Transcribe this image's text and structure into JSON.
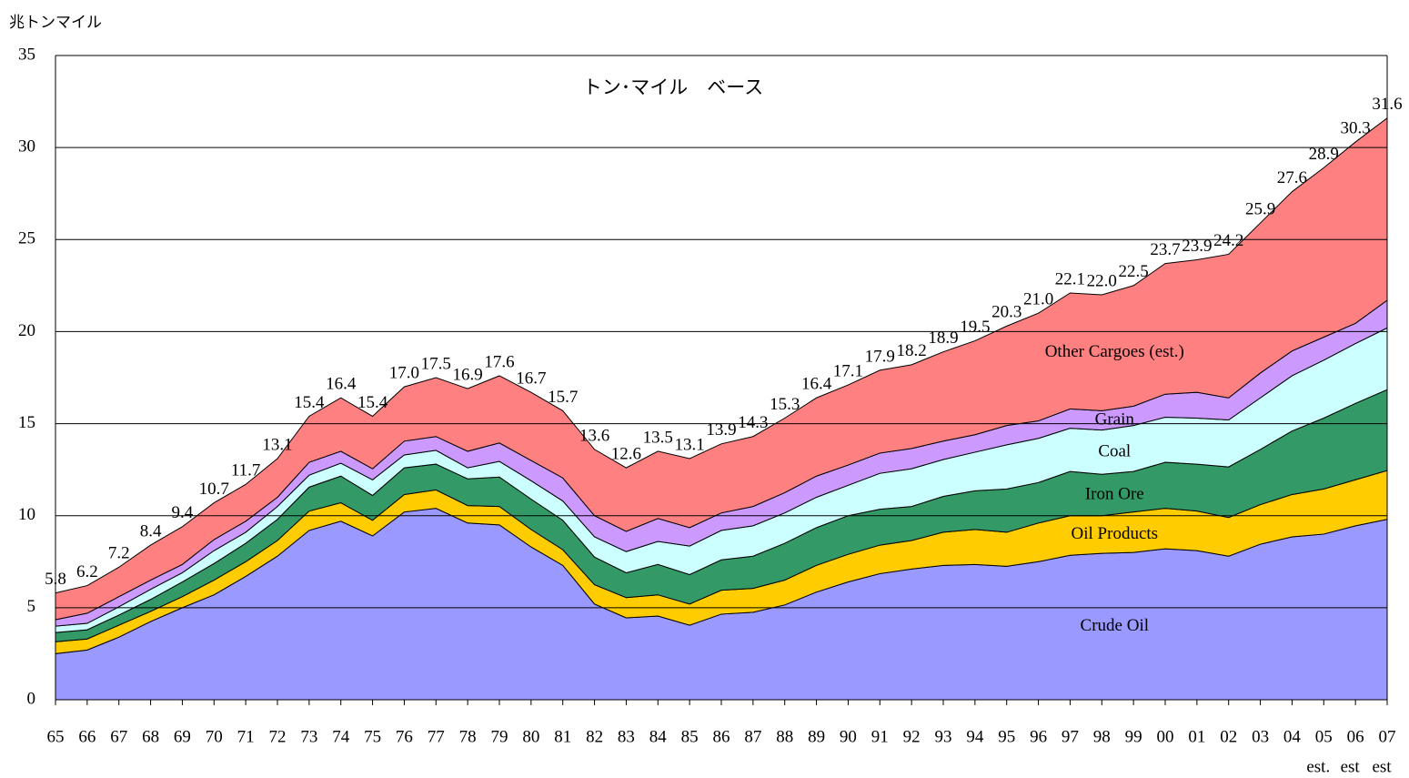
{
  "chart_data": {
    "type": "stacked_area",
    "title": "トン･マイル　ベース",
    "y_axis_label": "兆トンマイル",
    "categories": [
      "65",
      "66",
      "67",
      "68",
      "69",
      "70",
      "71",
      "72",
      "73",
      "74",
      "75",
      "76",
      "77",
      "78",
      "79",
      "80",
      "81",
      "82",
      "83",
      "84",
      "85",
      "86",
      "87",
      "88",
      "89",
      "90",
      "91",
      "92",
      "93",
      "94",
      "95",
      "96",
      "97",
      "98",
      "99",
      "00",
      "01",
      "02",
      "03",
      "04",
      "05",
      "06",
      "07"
    ],
    "x_sublabels": [
      null,
      null,
      null,
      null,
      null,
      null,
      null,
      null,
      null,
      null,
      null,
      null,
      null,
      null,
      null,
      null,
      null,
      null,
      null,
      null,
      null,
      null,
      null,
      null,
      null,
      null,
      null,
      null,
      null,
      null,
      null,
      null,
      null,
      null,
      null,
      null,
      null,
      null,
      null,
      null,
      "est.",
      "est",
      "est"
    ],
    "ylim": [
      0,
      35
    ],
    "yticks": [
      0,
      5,
      10,
      15,
      20,
      25,
      30,
      35
    ],
    "grid": true,
    "series": [
      {
        "name": "Crude Oil",
        "color": "#9999ff",
        "values": [
          2.5,
          2.7,
          3.4,
          4.25,
          5.0,
          5.7,
          6.7,
          7.8,
          9.2,
          9.7,
          8.9,
          10.2,
          10.4,
          9.6,
          9.5,
          8.3,
          7.3,
          5.2,
          4.45,
          4.55,
          4.05,
          4.65,
          4.75,
          5.15,
          5.85,
          6.4,
          6.85,
          7.1,
          7.3,
          7.35,
          7.25,
          7.5,
          7.85,
          7.95,
          8.0,
          8.2,
          8.1,
          7.8,
          8.45,
          8.85,
          9.0,
          9.45,
          9.8
        ]
      },
      {
        "name": "Oil Products",
        "color": "#ffcc00",
        "values": [
          0.65,
          0.6,
          0.65,
          0.55,
          0.6,
          0.8,
          0.8,
          0.85,
          1.05,
          1.0,
          0.85,
          0.95,
          1.0,
          0.95,
          1.0,
          0.95,
          0.85,
          1.05,
          1.1,
          1.15,
          1.15,
          1.3,
          1.3,
          1.35,
          1.45,
          1.5,
          1.55,
          1.55,
          1.8,
          1.9,
          1.85,
          2.1,
          2.15,
          2.05,
          2.2,
          2.2,
          2.15,
          2.1,
          2.15,
          2.3,
          2.45,
          2.5,
          2.65
        ]
      },
      {
        "name": "Iron Ore",
        "color": "#339966",
        "values": [
          0.5,
          0.5,
          0.55,
          0.65,
          0.8,
          0.9,
          1.0,
          1.15,
          1.3,
          1.45,
          1.35,
          1.45,
          1.4,
          1.45,
          1.6,
          1.65,
          1.6,
          1.5,
          1.35,
          1.65,
          1.6,
          1.65,
          1.75,
          2.0,
          2.05,
          2.1,
          1.95,
          1.85,
          1.95,
          2.1,
          2.35,
          2.2,
          2.4,
          2.25,
          2.2,
          2.5,
          2.55,
          2.75,
          3.0,
          3.45,
          3.85,
          4.15,
          4.4
        ]
      },
      {
        "name": "Coal",
        "color": "#ccffff",
        "values": [
          0.35,
          0.35,
          0.45,
          0.55,
          0.5,
          0.7,
          0.6,
          0.7,
          0.65,
          0.7,
          0.85,
          0.7,
          0.75,
          0.6,
          0.85,
          1.0,
          1.05,
          1.1,
          1.15,
          1.25,
          1.55,
          1.6,
          1.65,
          1.65,
          1.65,
          1.65,
          1.95,
          2.05,
          2.0,
          2.1,
          2.4,
          2.4,
          2.35,
          2.4,
          2.5,
          2.45,
          2.5,
          2.55,
          2.8,
          3.0,
          3.15,
          3.25,
          3.35
        ]
      },
      {
        "name": "Grain",
        "color": "#cc99ff",
        "values": [
          0.35,
          0.55,
          0.55,
          0.5,
          0.45,
          0.6,
          0.6,
          0.5,
          0.7,
          0.65,
          0.6,
          0.75,
          0.75,
          0.9,
          1.0,
          1.1,
          1.25,
          1.15,
          1.1,
          1.25,
          1.0,
          0.95,
          1.05,
          1.1,
          1.15,
          1.1,
          1.1,
          1.1,
          1.0,
          0.95,
          1.05,
          0.95,
          1.05,
          1.05,
          1.05,
          1.25,
          1.4,
          1.2,
          1.35,
          1.35,
          1.25,
          1.1,
          1.5
        ]
      },
      {
        "name": "Other Cargoes (est.)",
        "color": "#ff8080",
        "values": [
          1.45,
          1.5,
          1.6,
          1.9,
          2.05,
          2.0,
          2.0,
          2.1,
          2.5,
          2.9,
          2.85,
          2.95,
          3.2,
          3.4,
          3.65,
          3.7,
          3.65,
          3.6,
          3.45,
          3.65,
          3.75,
          3.75,
          3.8,
          4.05,
          4.25,
          4.35,
          4.5,
          4.55,
          4.85,
          5.1,
          5.4,
          5.85,
          6.3,
          6.3,
          6.55,
          7.1,
          7.2,
          7.8,
          8.15,
          8.65,
          9.2,
          9.85,
          9.9
        ]
      }
    ],
    "total": {
      "values": [
        5.8,
        6.2,
        7.2,
        8.4,
        9.4,
        10.7,
        11.7,
        13.1,
        15.4,
        16.4,
        15.4,
        17.0,
        17.5,
        16.9,
        17.6,
        16.7,
        15.7,
        13.6,
        12.6,
        13.5,
        13.1,
        13.9,
        14.3,
        15.3,
        16.4,
        17.1,
        17.9,
        18.2,
        18.9,
        19.5,
        20.3,
        21.0,
        22.1,
        22.0,
        22.5,
        23.7,
        23.9,
        24.2,
        25.9,
        27.6,
        28.9,
        30.3,
        31.6
      ],
      "value_labels": [
        "5.8",
        "6.2",
        "7.2",
        "8.4",
        "9.4",
        "10.7",
        "11.7",
        "13.1",
        "15.4",
        "16.4",
        "15.4",
        "17.0",
        "17.5",
        "16.9",
        "17.6",
        "16.7",
        "15.7",
        "13.6",
        "12.6",
        "13.5",
        "13.1",
        "13.9",
        "14.3",
        "15.3",
        "16.4",
        "17.1",
        "17.9",
        "18.2",
        "18.9",
        "19.5",
        "20.3",
        "21.0",
        "22.1",
        "22.0",
        "22.5",
        "23.7",
        "23.9",
        "24.2",
        "25.9",
        "27.6",
        "28.9",
        "30.3",
        "31.6"
      ]
    }
  }
}
